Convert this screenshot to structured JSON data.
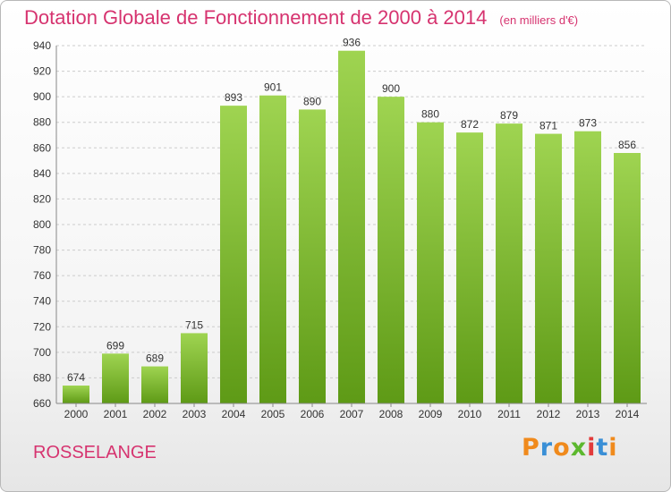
{
  "title": "Dotation Globale de Fonctionnement de 2000 à 2014",
  "subtitle": "(en milliers d'€)",
  "place": "ROSSELANGE",
  "logo": {
    "letters": [
      "P",
      "r",
      "o",
      "x",
      "i",
      "t",
      "i"
    ],
    "colors": [
      "#f08a1c",
      "#3a8fd6",
      "#f08a1c",
      "#5cb82e",
      "#e23b3b",
      "#3a8fd6",
      "#f08a1c"
    ]
  },
  "colors": {
    "bar_top": "#9fd451",
    "bar_bottom": "#5e9a16",
    "title": "#d6336f",
    "grid": "#cccccc"
  },
  "chart_data": {
    "type": "bar",
    "title": "Dotation Globale de Fonctionnement de 2000 à 2014",
    "subtitle": "(en milliers d'€)",
    "xlabel": "",
    "ylabel": "",
    "categories": [
      "2000",
      "2001",
      "2002",
      "2003",
      "2004",
      "2005",
      "2006",
      "2007",
      "2008",
      "2009",
      "2010",
      "2011",
      "2012",
      "2013",
      "2014"
    ],
    "values": [
      674,
      699,
      689,
      715,
      893,
      901,
      890,
      936,
      900,
      880,
      872,
      879,
      871,
      873,
      856
    ],
    "ylim": [
      660,
      940
    ],
    "yticks": [
      660,
      680,
      700,
      720,
      740,
      760,
      780,
      800,
      820,
      840,
      860,
      880,
      900,
      920,
      940
    ],
    "grid": true,
    "legend": "none"
  }
}
